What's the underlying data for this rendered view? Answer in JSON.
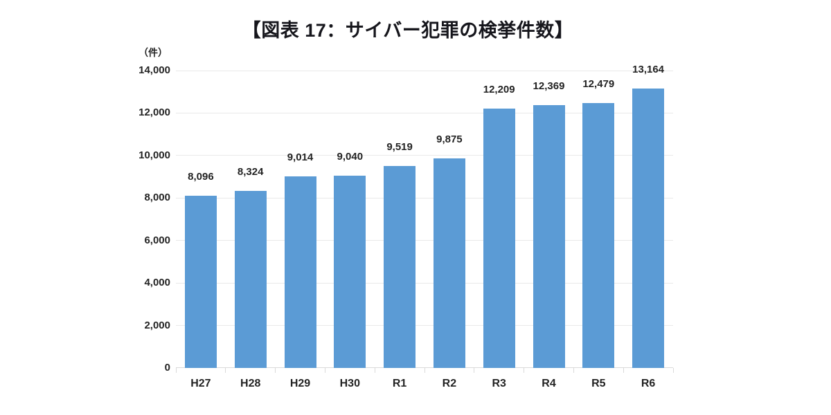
{
  "figure": {
    "title": "【図表 17：サイバー犯罪の検挙件数】"
  },
  "chart_data": {
    "type": "bar",
    "title": "【図表 17：サイバー犯罪の検挙件数】",
    "unit_label": "（件）",
    "categories": [
      "H27",
      "H28",
      "H29",
      "H30",
      "R1",
      "R2",
      "R3",
      "R4",
      "R5",
      "R6"
    ],
    "values": [
      8096,
      8324,
      9014,
      9040,
      9519,
      9875,
      12209,
      12369,
      12479,
      13164
    ],
    "value_labels": [
      "8,096",
      "8,324",
      "9,014",
      "9,040",
      "9,519",
      "9,875",
      "12,209",
      "12,369",
      "12,479",
      "13,164"
    ],
    "xlabel": "",
    "ylabel": "",
    "ylim": [
      0,
      14000
    ],
    "ytick_step": 2000,
    "ytick_labels": [
      "0",
      "2,000",
      "4,000",
      "6,000",
      "8,000",
      "10,000",
      "12,000",
      "14,000"
    ],
    "grid": true,
    "legend": false,
    "bar_color": "#5B9BD5",
    "gridline_color": "#E9E9E9",
    "axis_line_color": "#D9D9D9",
    "text_color": "#232323",
    "title_color": "#16161C"
  }
}
